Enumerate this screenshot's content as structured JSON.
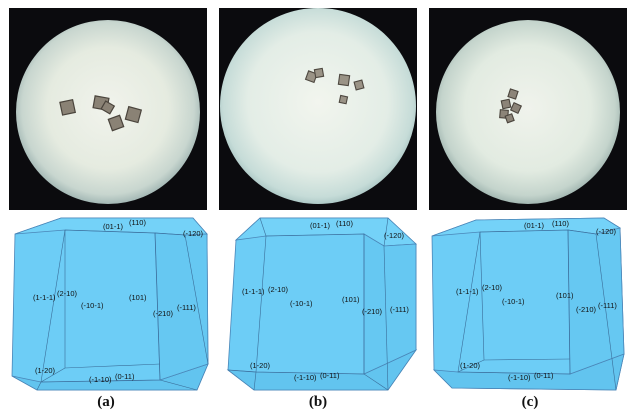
{
  "figure": {
    "panels": [
      {
        "caption": "(a)",
        "labels": {
          "f01m1": "(01-1)",
          "f110": "(110)",
          "fm120": "(-120)",
          "f1m1m1": "(1-1-1)",
          "f2m10": "(2-10)",
          "fm10m1": "(-10-1)",
          "f101": "(101)",
          "fm111": "(-111)",
          "fm210": "(-210)",
          "f1m20": "(1-20)",
          "fm1m10": "(-1-10)",
          "f0m11": "(0-11)"
        }
      },
      {
        "caption": "(b)",
        "labels": {
          "f01m1": "(01-1)",
          "f110": "(110)",
          "fm120": "(-120)",
          "f1m1m1": "(1-1-1)",
          "f2m10": "(2-10)",
          "fm10m1": "(-10-1)",
          "f101": "(101)",
          "fm111": "(-111)",
          "fm210": "(-210)",
          "f1m20": "(1-20)",
          "fm1m10": "(-1-10)",
          "f0m11": "(0-11)"
        }
      },
      {
        "caption": "(c)",
        "labels": {
          "f01m1": "(01-1)",
          "f110": "(110)",
          "fm120": "(-120)",
          "f1m1m1": "(1-1-1)",
          "f2m10": "(2-10)",
          "fm10m1": "(-10-1)",
          "f101": "(101)",
          "fm111": "(-111)",
          "fm210": "(-210)",
          "f1m20": "(1-20)",
          "fm1m10": "(-1-10)",
          "f0m11": "(0-11)"
        }
      }
    ],
    "colors": {
      "crystal_face": "#6dcdf6",
      "crystal_edge": "#4a86b8",
      "microscope_field": "#eef2ea",
      "microscope_surround": "#0b0b0e",
      "crystal_particle": "#6d655b"
    }
  }
}
